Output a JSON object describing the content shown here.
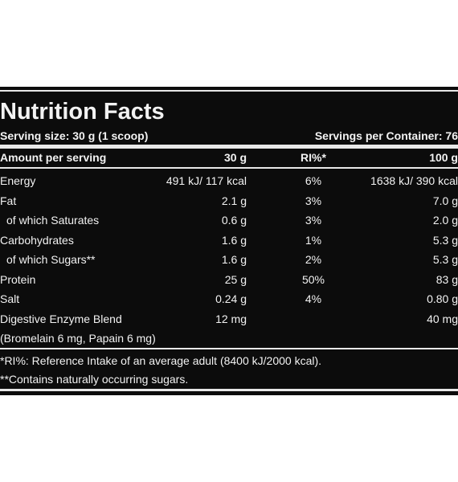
{
  "title": "Nutrition Facts",
  "serving_size": "Serving size: 30 g (1 scoop)",
  "servings_per_container": "Servings per Container: 76",
  "table": {
    "header": [
      "Amount per serving",
      "30 g",
      "RI%*",
      "100 g"
    ],
    "rows": [
      {
        "name": "Energy",
        "per_30g": "491 kJ/ 117 kcal",
        "ri": "6%",
        "per_100g": "1638 kJ/ 390 kcal"
      },
      {
        "name": "Fat",
        "per_30g": "2.1 g",
        "ri": "3%",
        "per_100g": "7.0 g"
      },
      {
        "name": "of which Saturates",
        "per_30g": "0.6 g",
        "ri": "3%",
        "per_100g": "2.0 g",
        "indent": true
      },
      {
        "name": "Carbohydrates",
        "per_30g": "1.6 g",
        "ri": "1%",
        "per_100g": "5.3 g"
      },
      {
        "name": "of which Sugars**",
        "per_30g": "1.6 g",
        "ri": "2%",
        "per_100g": "5.3 g",
        "indent": true
      },
      {
        "name": "Protein",
        "per_30g": "25 g",
        "ri": "50%",
        "per_100g": "83 g"
      },
      {
        "name": "Salt",
        "per_30g": "0.24 g",
        "ri": "4%",
        "per_100g": "0.80 g"
      },
      {
        "name": "Digestive Enzyme Blend",
        "per_30g": "12 mg",
        "per_100g": "40 mg"
      },
      {
        "name": "(Bromelain 6 mg, Papain 6 mg)"
      }
    ]
  },
  "footnotes": [
    "*RI%: Reference Intake of an average adult (8400 kJ/2000 kcal).",
    "**Contains naturally occurring sugars."
  ]
}
